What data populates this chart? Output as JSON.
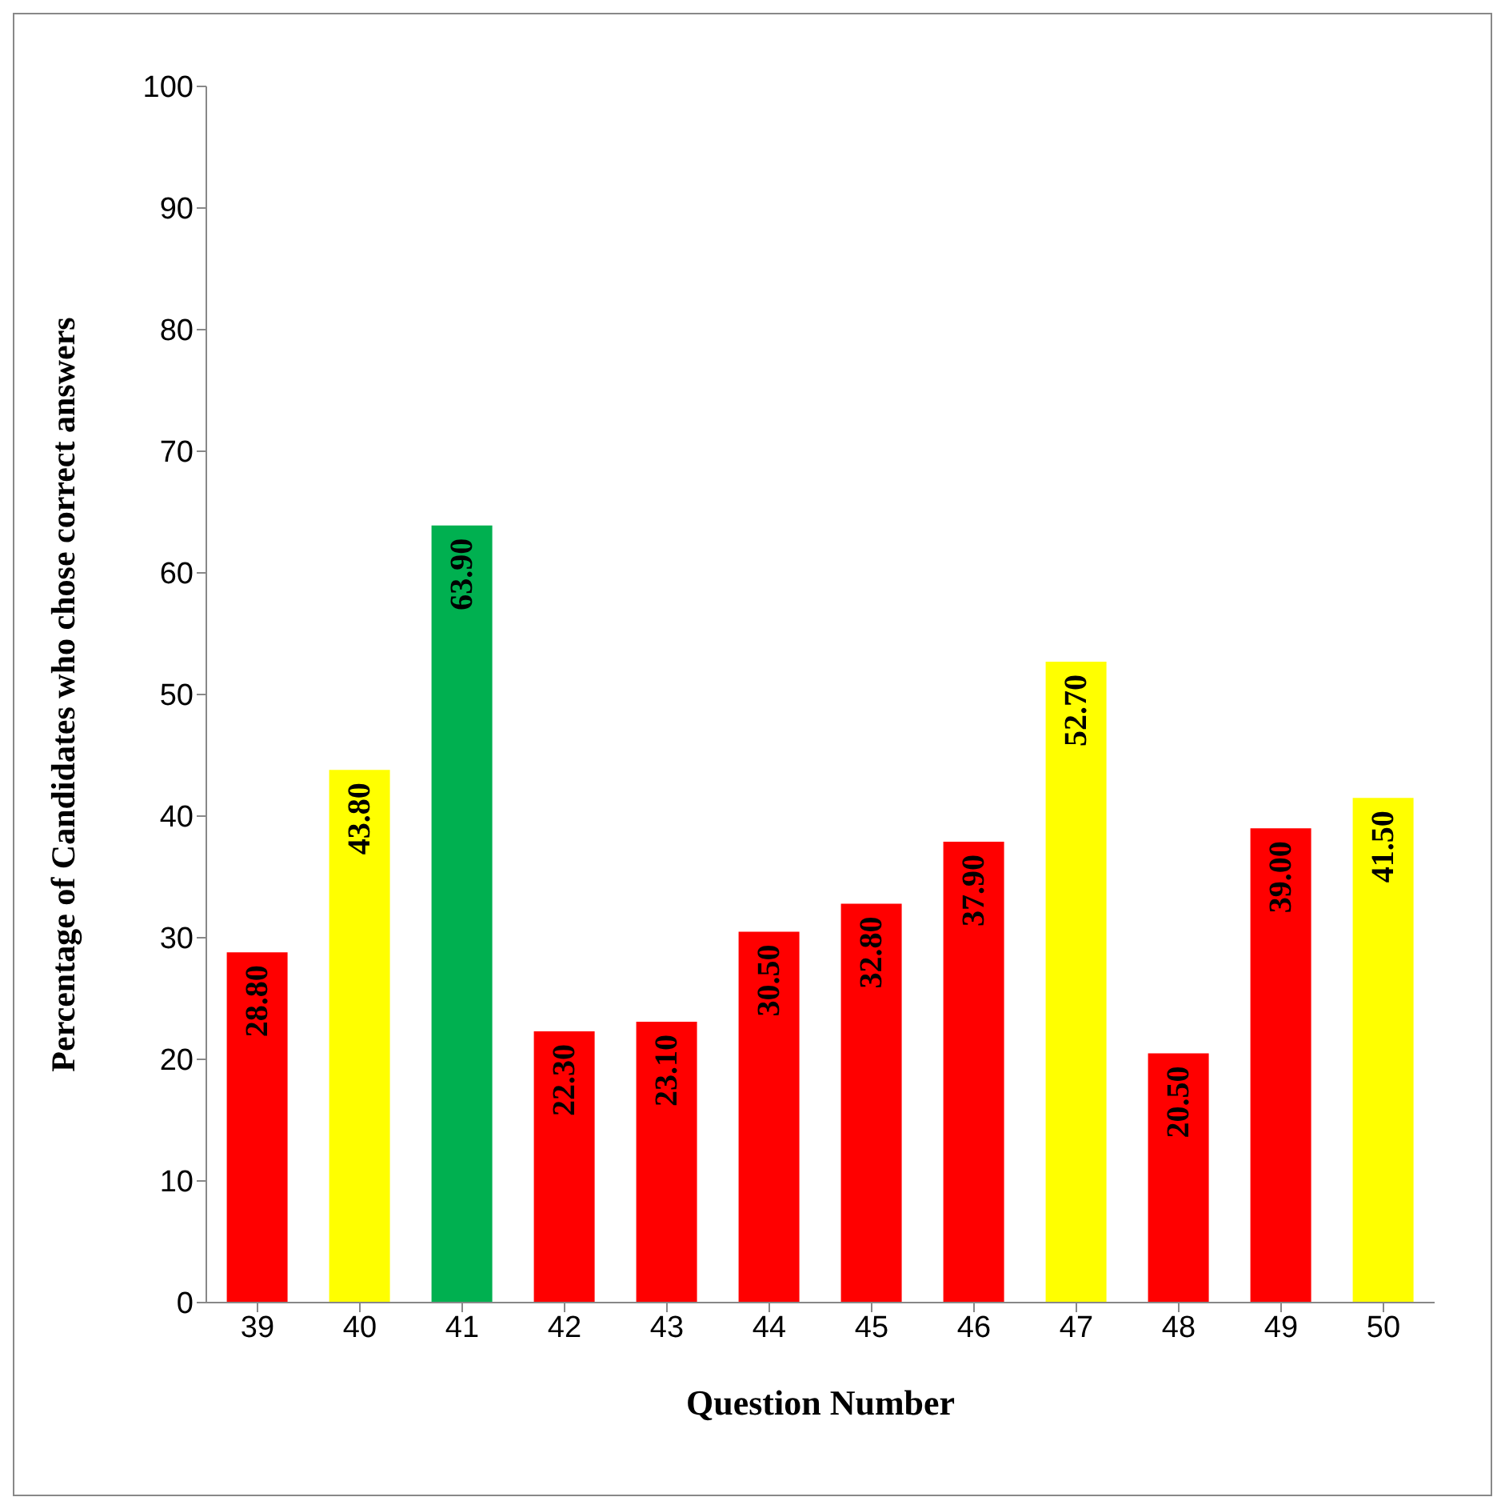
{
  "chart_data": {
    "type": "bar",
    "xlabel": "Question Number",
    "ylabel": "Percentage of Candidates  who chose correct answers",
    "categories": [
      "39",
      "40",
      "41",
      "42",
      "43",
      "44",
      "45",
      "46",
      "47",
      "48",
      "49",
      "50"
    ],
    "values": [
      28.8,
      43.8,
      63.9,
      22.3,
      23.1,
      30.5,
      32.8,
      37.9,
      52.7,
      20.5,
      39.0,
      41.5
    ],
    "colors": [
      "#ff0000",
      "#ffff00",
      "#00b050",
      "#ff0000",
      "#ff0000",
      "#ff0000",
      "#ff0000",
      "#ff0000",
      "#ffff00",
      "#ff0000",
      "#ff0000",
      "#ffff00"
    ],
    "value_labels": [
      "28.80",
      "43.80",
      "63.90",
      "22.30",
      "23.10",
      "30.50",
      "32.80",
      "37.90",
      "52.70",
      "20.50",
      "39.00",
      "41.50"
    ],
    "ylim": [
      0,
      100
    ],
    "yticks": [
      0,
      10,
      20,
      30,
      40,
      50,
      60,
      70,
      80,
      90,
      100
    ],
    "grid": false,
    "legend": false
  }
}
